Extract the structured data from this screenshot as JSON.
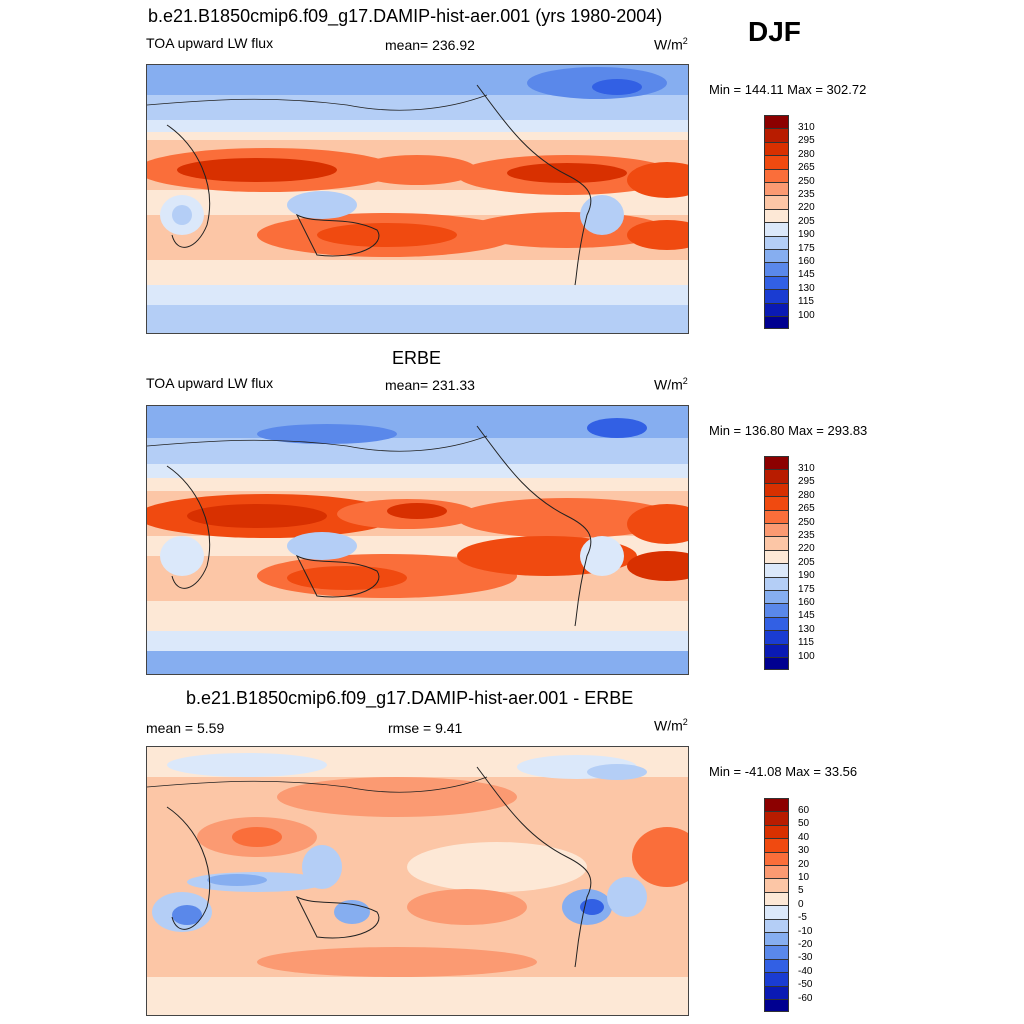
{
  "season": "DJF",
  "panels": [
    {
      "title": "b.e21.B1850cmip6.f09_g17.DAMIP-hist-aer.001 (yrs 1980-2004)",
      "left_label": "TOA upward LW flux",
      "center_label": "mean= 236.92",
      "units": "W/m",
      "units_sup": "2",
      "minmax": "Min = 144.11 Max = 302.72",
      "colorbar_labels": [
        "310",
        "295",
        "280",
        "265",
        "250",
        "235",
        "220",
        "205",
        "190",
        "175",
        "160",
        "145",
        "130",
        "115",
        "100"
      ]
    },
    {
      "title": "ERBE",
      "left_label": "TOA upward LW flux",
      "center_label": "mean= 231.33",
      "units": "W/m",
      "units_sup": "2",
      "minmax": "Min = 136.80 Max = 293.83",
      "colorbar_labels": [
        "310",
        "295",
        "280",
        "265",
        "250",
        "235",
        "220",
        "205",
        "190",
        "175",
        "160",
        "145",
        "130",
        "115",
        "100"
      ]
    },
    {
      "title": "b.e21.B1850cmip6.f09_g17.DAMIP-hist-aer.001 - ERBE",
      "left_label": "mean =   5.59",
      "center_label": "rmse =   9.41",
      "units": "W/m",
      "units_sup": "2",
      "minmax": "Min = -41.08 Max =  33.56",
      "colorbar_labels": [
        "60",
        "50",
        "40",
        "30",
        "20",
        "10",
        "5",
        "0",
        "-5",
        "-10",
        "-20",
        "-30",
        "-40",
        "-50",
        "-60"
      ]
    }
  ],
  "colors": {
    "palette": [
      "#8c0000",
      "#b81c00",
      "#d83000",
      "#f04a10",
      "#fa6e3a",
      "#fb9a72",
      "#fcc6a6",
      "#fde8d6",
      "#dbe8fa",
      "#b4cef6",
      "#86aef0",
      "#5a88ea",
      "#3260e4",
      "#1a3cd2",
      "#0a1ab4",
      "#000090"
    ]
  }
}
